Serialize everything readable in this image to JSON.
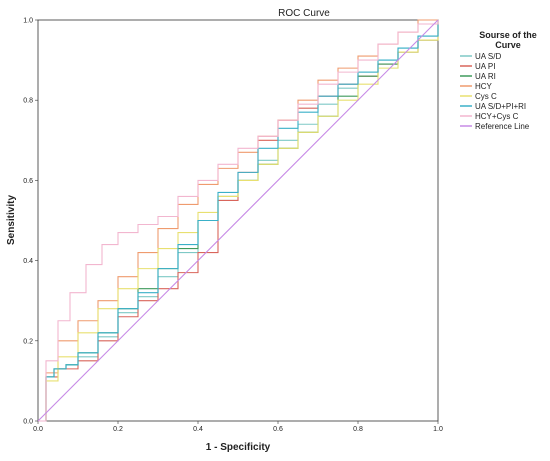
{
  "chart_data": {
    "type": "line",
    "title": "ROC Curve",
    "xlabel": "1 - Specificity",
    "ylabel": "Sensitivity",
    "xlim": [
      0,
      1
    ],
    "ylim": [
      0,
      1
    ],
    "x_ticks": [
      "0.0",
      "0.2",
      "0.4",
      "0.6",
      "0.8",
      "1.0"
    ],
    "y_ticks": [
      "0.0",
      "0.2",
      "0.4",
      "0.6",
      "0.8",
      "1.0"
    ],
    "grid": false,
    "legend": {
      "title_line1": "Sourse of the",
      "title_line2": "Curve",
      "placement": "right"
    },
    "series": [
      {
        "name": "UA S/D",
        "color": "#7fc9c6",
        "x": [
          0,
          0.02,
          0.04,
          0.07,
          0.1,
          0.15,
          0.2,
          0.25,
          0.3,
          0.35,
          0.4,
          0.45,
          0.5,
          0.55,
          0.6,
          0.65,
          0.7,
          0.75,
          0.8,
          0.85,
          0.9,
          0.95,
          1.0
        ],
        "y": [
          0,
          0.11,
          0.13,
          0.14,
          0.16,
          0.21,
          0.27,
          0.31,
          0.36,
          0.42,
          0.5,
          0.55,
          0.6,
          0.65,
          0.7,
          0.74,
          0.79,
          0.83,
          0.87,
          0.9,
          0.93,
          0.96,
          1.0
        ]
      },
      {
        "name": "UA PI",
        "color": "#d9655b",
        "x": [
          0,
          0.02,
          0.05,
          0.1,
          0.15,
          0.2,
          0.25,
          0.3,
          0.35,
          0.4,
          0.45,
          0.5,
          0.55,
          0.6,
          0.65,
          0.7,
          0.75,
          0.8,
          0.85,
          0.9,
          0.95,
          1.0
        ],
        "y": [
          0,
          0.11,
          0.13,
          0.15,
          0.2,
          0.26,
          0.3,
          0.33,
          0.37,
          0.42,
          0.55,
          0.62,
          0.7,
          0.75,
          0.78,
          0.81,
          0.84,
          0.86,
          0.89,
          0.92,
          0.95,
          1.0
        ]
      },
      {
        "name": "UA RI",
        "color": "#3f9a5c",
        "x": [
          0,
          0.02,
          0.04,
          0.07,
          0.1,
          0.15,
          0.2,
          0.25,
          0.3,
          0.35,
          0.4,
          0.45,
          0.5,
          0.55,
          0.6,
          0.65,
          0.7,
          0.75,
          0.8,
          0.85,
          0.9,
          0.95,
          1.0
        ],
        "y": [
          0,
          0.11,
          0.13,
          0.14,
          0.17,
          0.22,
          0.28,
          0.33,
          0.38,
          0.43,
          0.5,
          0.56,
          0.6,
          0.64,
          0.68,
          0.72,
          0.76,
          0.81,
          0.86,
          0.89,
          0.92,
          0.95,
          1.0
        ]
      },
      {
        "name": "HCY",
        "color": "#ef9b6e",
        "x": [
          0,
          0.02,
          0.05,
          0.1,
          0.15,
          0.2,
          0.25,
          0.3,
          0.35,
          0.4,
          0.45,
          0.5,
          0.55,
          0.6,
          0.65,
          0.7,
          0.75,
          0.8,
          0.85,
          0.9,
          0.95,
          1.0
        ],
        "y": [
          0,
          0.12,
          0.2,
          0.25,
          0.3,
          0.36,
          0.42,
          0.48,
          0.54,
          0.59,
          0.63,
          0.67,
          0.71,
          0.75,
          0.8,
          0.85,
          0.88,
          0.91,
          0.94,
          0.97,
          1.0,
          1.0
        ]
      },
      {
        "name": "Cys C",
        "color": "#e8e070",
        "x": [
          0,
          0.02,
          0.05,
          0.1,
          0.15,
          0.2,
          0.25,
          0.3,
          0.35,
          0.4,
          0.45,
          0.5,
          0.55,
          0.6,
          0.65,
          0.7,
          0.75,
          0.8,
          0.85,
          0.9,
          0.95,
          1.0
        ],
        "y": [
          0,
          0.1,
          0.16,
          0.22,
          0.28,
          0.33,
          0.38,
          0.43,
          0.47,
          0.52,
          0.56,
          0.6,
          0.64,
          0.68,
          0.72,
          0.76,
          0.8,
          0.84,
          0.88,
          0.92,
          0.95,
          1.0
        ]
      },
      {
        "name": "UA S/D+PI+RI",
        "color": "#3ab0c8",
        "x": [
          0,
          0.02,
          0.04,
          0.07,
          0.1,
          0.15,
          0.2,
          0.25,
          0.3,
          0.35,
          0.4,
          0.45,
          0.5,
          0.55,
          0.6,
          0.65,
          0.7,
          0.75,
          0.8,
          0.85,
          0.9,
          0.95,
          1.0
        ],
        "y": [
          0,
          0.11,
          0.13,
          0.14,
          0.17,
          0.22,
          0.28,
          0.32,
          0.38,
          0.44,
          0.5,
          0.57,
          0.62,
          0.68,
          0.73,
          0.77,
          0.81,
          0.84,
          0.87,
          0.9,
          0.93,
          0.96,
          1.0
        ]
      },
      {
        "name": "HCY+Cys C",
        "color": "#f2b6cf",
        "x": [
          0,
          0.02,
          0.05,
          0.08,
          0.12,
          0.16,
          0.2,
          0.25,
          0.3,
          0.35,
          0.4,
          0.45,
          0.5,
          0.55,
          0.6,
          0.65,
          0.7,
          0.75,
          0.8,
          0.85,
          0.9,
          0.95,
          1.0
        ],
        "y": [
          0,
          0.15,
          0.25,
          0.32,
          0.39,
          0.44,
          0.47,
          0.49,
          0.51,
          0.56,
          0.6,
          0.64,
          0.68,
          0.71,
          0.75,
          0.79,
          0.84,
          0.87,
          0.9,
          0.94,
          0.97,
          0.99,
          1.0
        ]
      },
      {
        "name": "Reference Line",
        "color": "#c78ae6",
        "x": [
          0,
          1
        ],
        "y": [
          0,
          1
        ]
      }
    ]
  }
}
